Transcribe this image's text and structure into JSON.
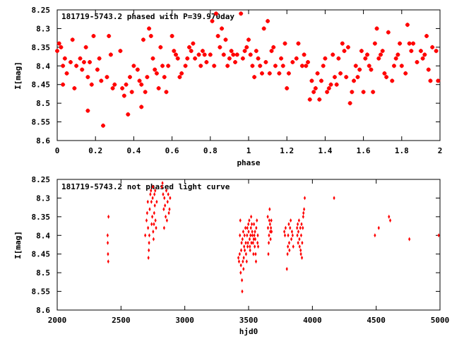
{
  "chart_data": [
    {
      "type": "scatter",
      "title": "181719-5743.2 phased with P=39.970day",
      "xlabel": "phase",
      "ylabel": "I[mag]",
      "xlim": [
        0,
        2
      ],
      "ylim": [
        8.6,
        8.25
      ],
      "y_inverted": true,
      "grid": false,
      "marker": "star",
      "color": "#ff0000",
      "x_ticks": [
        "0",
        "0.2",
        "0.4",
        "0.6",
        "0.8",
        "1",
        "1.2",
        "1.4",
        "1.6",
        "1.8",
        "2"
      ],
      "y_ticks": [
        "8.25",
        "8.3",
        "8.35",
        "8.4",
        "8.45",
        "8.5",
        "8.55",
        "8.6"
      ],
      "points": [
        [
          0.0,
          8.36
        ],
        [
          0.01,
          8.34
        ],
        [
          0.02,
          8.35
        ],
        [
          0.03,
          8.45
        ],
        [
          0.03,
          8.4
        ],
        [
          0.04,
          8.38
        ],
        [
          0.05,
          8.42
        ],
        [
          0.07,
          8.39
        ],
        [
          0.08,
          8.33
        ],
        [
          0.09,
          8.46
        ],
        [
          0.1,
          8.4
        ],
        [
          0.12,
          8.38
        ],
        [
          0.13,
          8.41
        ],
        [
          0.14,
          8.39
        ],
        [
          0.15,
          8.35
        ],
        [
          0.16,
          8.52
        ],
        [
          0.16,
          8.43
        ],
        [
          0.17,
          8.39
        ],
        [
          0.18,
          8.45
        ],
        [
          0.19,
          8.32
        ],
        [
          0.21,
          8.41
        ],
        [
          0.22,
          8.38
        ],
        [
          0.23,
          8.44
        ],
        [
          0.24,
          8.56
        ],
        [
          0.26,
          8.43
        ],
        [
          0.27,
          8.32
        ],
        [
          0.28,
          8.37
        ],
        [
          0.29,
          8.46
        ],
        [
          0.3,
          8.45
        ],
        [
          0.33,
          8.36
        ],
        [
          0.34,
          8.46
        ],
        [
          0.35,
          8.48
        ],
        [
          0.36,
          8.45
        ],
        [
          0.37,
          8.53
        ],
        [
          0.38,
          8.43
        ],
        [
          0.39,
          8.47
        ],
        [
          0.4,
          8.4
        ],
        [
          0.42,
          8.41
        ],
        [
          0.43,
          8.44
        ],
        [
          0.44,
          8.51
        ],
        [
          0.44,
          8.45
        ],
        [
          0.45,
          8.33
        ],
        [
          0.46,
          8.47
        ],
        [
          0.47,
          8.43
        ],
        [
          0.48,
          8.3
        ],
        [
          0.49,
          8.32
        ],
        [
          0.5,
          8.38
        ],
        [
          0.51,
          8.41
        ],
        [
          0.52,
          8.42
        ],
        [
          0.53,
          8.46
        ],
        [
          0.54,
          8.35
        ],
        [
          0.55,
          8.4
        ],
        [
          0.56,
          8.43
        ],
        [
          0.57,
          8.47
        ],
        [
          0.58,
          8.4
        ],
        [
          0.6,
          8.32
        ],
        [
          0.61,
          8.36
        ],
        [
          0.62,
          8.37
        ],
        [
          0.63,
          8.38
        ],
        [
          0.64,
          8.43
        ],
        [
          0.65,
          8.42
        ],
        [
          0.67,
          8.4
        ],
        [
          0.68,
          8.38
        ],
        [
          0.69,
          8.35
        ],
        [
          0.7,
          8.36
        ],
        [
          0.71,
          8.34
        ],
        [
          0.72,
          8.38
        ],
        [
          0.74,
          8.37
        ],
        [
          0.75,
          8.4
        ],
        [
          0.76,
          8.36
        ],
        [
          0.77,
          8.37
        ],
        [
          0.78,
          8.39
        ],
        [
          0.8,
          8.37
        ],
        [
          0.81,
          8.28
        ],
        [
          0.82,
          8.4
        ],
        [
          0.83,
          8.26
        ],
        [
          0.84,
          8.32
        ],
        [
          0.85,
          8.35
        ],
        [
          0.86,
          8.3
        ],
        [
          0.87,
          8.37
        ],
        [
          0.88,
          8.33
        ],
        [
          0.89,
          8.4
        ],
        [
          0.9,
          8.38
        ],
        [
          0.91,
          8.36
        ],
        [
          0.92,
          8.37
        ],
        [
          0.93,
          8.39
        ],
        [
          0.94,
          8.37
        ],
        [
          0.96,
          8.26
        ],
        [
          0.97,
          8.38
        ],
        [
          0.98,
          8.36
        ],
        [
          0.99,
          8.35
        ],
        [
          1.0,
          8.33
        ],
        [
          1.01,
          8.37
        ],
        [
          1.02,
          8.4
        ],
        [
          1.03,
          8.43
        ],
        [
          1.04,
          8.36
        ],
        [
          1.05,
          8.38
        ],
        [
          1.06,
          8.4
        ],
        [
          1.07,
          8.42
        ],
        [
          1.08,
          8.3
        ],
        [
          1.09,
          8.39
        ],
        [
          1.1,
          8.28
        ],
        [
          1.11,
          8.42
        ],
        [
          1.12,
          8.36
        ],
        [
          1.13,
          8.35
        ],
        [
          1.14,
          8.4
        ],
        [
          1.16,
          8.42
        ],
        [
          1.17,
          8.38
        ],
        [
          1.18,
          8.4
        ],
        [
          1.19,
          8.34
        ],
        [
          1.2,
          8.46
        ],
        [
          1.21,
          8.42
        ],
        [
          1.23,
          8.39
        ],
        [
          1.25,
          8.38
        ],
        [
          1.26,
          8.34
        ],
        [
          1.28,
          8.4
        ],
        [
          1.29,
          8.37
        ],
        [
          1.3,
          8.4
        ],
        [
          1.31,
          8.39
        ],
        [
          1.32,
          8.49
        ],
        [
          1.33,
          8.44
        ],
        [
          1.34,
          8.47
        ],
        [
          1.35,
          8.46
        ],
        [
          1.36,
          8.42
        ],
        [
          1.37,
          8.49
        ],
        [
          1.38,
          8.44
        ],
        [
          1.39,
          8.4
        ],
        [
          1.4,
          8.38
        ],
        [
          1.41,
          8.47
        ],
        [
          1.42,
          8.46
        ],
        [
          1.43,
          8.45
        ],
        [
          1.44,
          8.37
        ],
        [
          1.45,
          8.43
        ],
        [
          1.46,
          8.45
        ],
        [
          1.47,
          8.38
        ],
        [
          1.48,
          8.42
        ],
        [
          1.49,
          8.34
        ],
        [
          1.5,
          8.36
        ],
        [
          1.51,
          8.43
        ],
        [
          1.52,
          8.35
        ],
        [
          1.53,
          8.5
        ],
        [
          1.54,
          8.47
        ],
        [
          1.55,
          8.44
        ],
        [
          1.56,
          8.4
        ],
        [
          1.57,
          8.43
        ],
        [
          1.58,
          8.41
        ],
        [
          1.59,
          8.36
        ],
        [
          1.6,
          8.47
        ],
        [
          1.61,
          8.38
        ],
        [
          1.62,
          8.37
        ],
        [
          1.63,
          8.4
        ],
        [
          1.64,
          8.41
        ],
        [
          1.65,
          8.47
        ],
        [
          1.66,
          8.34
        ],
        [
          1.67,
          8.3
        ],
        [
          1.68,
          8.38
        ],
        [
          1.69,
          8.37
        ],
        [
          1.7,
          8.36
        ],
        [
          1.71,
          8.42
        ],
        [
          1.72,
          8.43
        ],
        [
          1.73,
          8.31
        ],
        [
          1.75,
          8.44
        ],
        [
          1.76,
          8.4
        ],
        [
          1.77,
          8.38
        ],
        [
          1.78,
          8.37
        ],
        [
          1.79,
          8.34
        ],
        [
          1.8,
          8.4
        ],
        [
          1.82,
          8.42
        ],
        [
          1.83,
          8.29
        ],
        [
          1.84,
          8.34
        ],
        [
          1.85,
          8.36
        ],
        [
          1.86,
          8.34
        ],
        [
          1.88,
          8.39
        ],
        [
          1.9,
          8.36
        ],
        [
          1.91,
          8.38
        ],
        [
          1.92,
          8.37
        ],
        [
          1.93,
          8.32
        ],
        [
          1.94,
          8.41
        ],
        [
          1.95,
          8.44
        ],
        [
          1.96,
          8.35
        ],
        [
          1.98,
          8.36
        ],
        [
          1.99,
          8.44
        ]
      ]
    },
    {
      "type": "scatter",
      "title": "181719-5743.2 not phased light curve",
      "xlabel": "hjd0",
      "ylabel": "I[mag]",
      "xlim": [
        2000,
        5000
      ],
      "ylim": [
        8.6,
        8.25
      ],
      "y_inverted": true,
      "grid": false,
      "marker": "diamond",
      "color": "#ff0000",
      "x_ticks": [
        "2000",
        "2500",
        "3000",
        "3500",
        "4000",
        "4500",
        "5000"
      ],
      "y_ticks": [
        "8.25",
        "8.3",
        "8.35",
        "8.4",
        "8.45",
        "8.5",
        "8.55",
        "8.6"
      ],
      "points": [
        [
          2395,
          8.4
        ],
        [
          2396,
          8.42
        ],
        [
          2398,
          8.45
        ],
        [
          2400,
          8.47
        ],
        [
          2402,
          8.35
        ],
        [
          2690,
          8.4
        ],
        [
          2700,
          8.36
        ],
        [
          2705,
          8.34
        ],
        [
          2710,
          8.31
        ],
        [
          2712,
          8.38
        ],
        [
          2715,
          8.46
        ],
        [
          2718,
          8.44
        ],
        [
          2720,
          8.42
        ],
        [
          2722,
          8.4
        ],
        [
          2725,
          8.33
        ],
        [
          2730,
          8.29
        ],
        [
          2735,
          8.28
        ],
        [
          2738,
          8.31
        ],
        [
          2740,
          8.37
        ],
        [
          2745,
          8.35
        ],
        [
          2748,
          8.3
        ],
        [
          2750,
          8.27
        ],
        [
          2752,
          8.39
        ],
        [
          2755,
          8.41
        ],
        [
          2758,
          8.37
        ],
        [
          2760,
          8.34
        ],
        [
          2762,
          8.29
        ],
        [
          2765,
          8.32
        ],
        [
          2768,
          8.28
        ],
        [
          2770,
          8.36
        ],
        [
          2775,
          8.38
        ],
        [
          2780,
          8.31
        ],
        [
          2820,
          8.27
        ],
        [
          2825,
          8.26
        ],
        [
          2830,
          8.29
        ],
        [
          2835,
          8.33
        ],
        [
          2838,
          8.38
        ],
        [
          2840,
          8.3
        ],
        [
          2845,
          8.32
        ],
        [
          2850,
          8.35
        ],
        [
          2855,
          8.28
        ],
        [
          2860,
          8.36
        ],
        [
          2865,
          8.31
        ],
        [
          2870,
          8.29
        ],
        [
          2875,
          8.34
        ],
        [
          2880,
          8.33
        ],
        [
          2885,
          8.3
        ],
        [
          3420,
          8.46
        ],
        [
          3425,
          8.47
        ],
        [
          3430,
          8.45
        ],
        [
          3432,
          8.4
        ],
        [
          3435,
          8.36
        ],
        [
          3438,
          8.5
        ],
        [
          3440,
          8.48
        ],
        [
          3442,
          8.44
        ],
        [
          3445,
          8.42
        ],
        [
          3448,
          8.52
        ],
        [
          3450,
          8.55
        ],
        [
          3452,
          8.41
        ],
        [
          3455,
          8.47
        ],
        [
          3458,
          8.39
        ],
        [
          3460,
          8.49
        ],
        [
          3462,
          8.46
        ],
        [
          3465,
          8.43
        ],
        [
          3468,
          8.4
        ],
        [
          3470,
          8.44
        ],
        [
          3475,
          8.38
        ],
        [
          3478,
          8.42
        ],
        [
          3480,
          8.45
        ],
        [
          3485,
          8.47
        ],
        [
          3488,
          8.4
        ],
        [
          3490,
          8.38
        ],
        [
          3492,
          8.43
        ],
        [
          3495,
          8.42
        ],
        [
          3498,
          8.37
        ],
        [
          3500,
          8.39
        ],
        [
          3505,
          8.36
        ],
        [
          3508,
          8.41
        ],
        [
          3510,
          8.43
        ],
        [
          3512,
          8.44
        ],
        [
          3515,
          8.4
        ],
        [
          3518,
          8.38
        ],
        [
          3520,
          8.35
        ],
        [
          3522,
          8.42
        ],
        [
          3525,
          8.37
        ],
        [
          3528,
          8.39
        ],
        [
          3530,
          8.4
        ],
        [
          3535,
          8.42
        ],
        [
          3538,
          8.45
        ],
        [
          3540,
          8.41
        ],
        [
          3542,
          8.37
        ],
        [
          3545,
          8.4
        ],
        [
          3548,
          8.43
        ],
        [
          3550,
          8.39
        ],
        [
          3552,
          8.41
        ],
        [
          3555,
          8.45
        ],
        [
          3558,
          8.47
        ],
        [
          3560,
          8.38
        ],
        [
          3565,
          8.36
        ],
        [
          3570,
          8.42
        ],
        [
          3572,
          8.4
        ],
        [
          3575,
          8.43
        ],
        [
          3650,
          8.35
        ],
        [
          3652,
          8.38
        ],
        [
          3655,
          8.45
        ],
        [
          3658,
          8.42
        ],
        [
          3660,
          8.4
        ],
        [
          3662,
          8.36
        ],
        [
          3665,
          8.33
        ],
        [
          3668,
          8.37
        ],
        [
          3670,
          8.39
        ],
        [
          3672,
          8.41
        ],
        [
          3675,
          8.38
        ],
        [
          3678,
          8.36
        ],
        [
          3680,
          8.39
        ],
        [
          3780,
          8.39
        ],
        [
          3785,
          8.4
        ],
        [
          3790,
          8.38
        ],
        [
          3800,
          8.49
        ],
        [
          3805,
          8.45
        ],
        [
          3808,
          8.43
        ],
        [
          3810,
          8.4
        ],
        [
          3815,
          8.37
        ],
        [
          3818,
          8.42
        ],
        [
          3820,
          8.44
        ],
        [
          3825,
          8.38
        ],
        [
          3830,
          8.36
        ],
        [
          3835,
          8.41
        ],
        [
          3840,
          8.39
        ],
        [
          3845,
          8.4
        ],
        [
          3850,
          8.43
        ],
        [
          3880,
          8.38
        ],
        [
          3882,
          8.4
        ],
        [
          3885,
          8.37
        ],
        [
          3888,
          8.42
        ],
        [
          3890,
          8.39
        ],
        [
          3895,
          8.36
        ],
        [
          3898,
          8.41
        ],
        [
          3900,
          8.43
        ],
        [
          3905,
          8.38
        ],
        [
          3908,
          8.44
        ],
        [
          3910,
          8.45
        ],
        [
          3912,
          8.4
        ],
        [
          3915,
          8.37
        ],
        [
          3918,
          8.46
        ],
        [
          3920,
          8.42
        ],
        [
          3925,
          8.38
        ],
        [
          3928,
          8.35
        ],
        [
          3930,
          8.34
        ],
        [
          3935,
          8.33
        ],
        [
          3940,
          8.3
        ],
        [
          4170,
          8.3
        ],
        [
          4490,
          8.4
        ],
        [
          4520,
          8.38
        ],
        [
          4600,
          8.35
        ],
        [
          4610,
          8.36
        ],
        [
          4760,
          8.41
        ],
        [
          4990,
          8.4
        ]
      ]
    }
  ]
}
